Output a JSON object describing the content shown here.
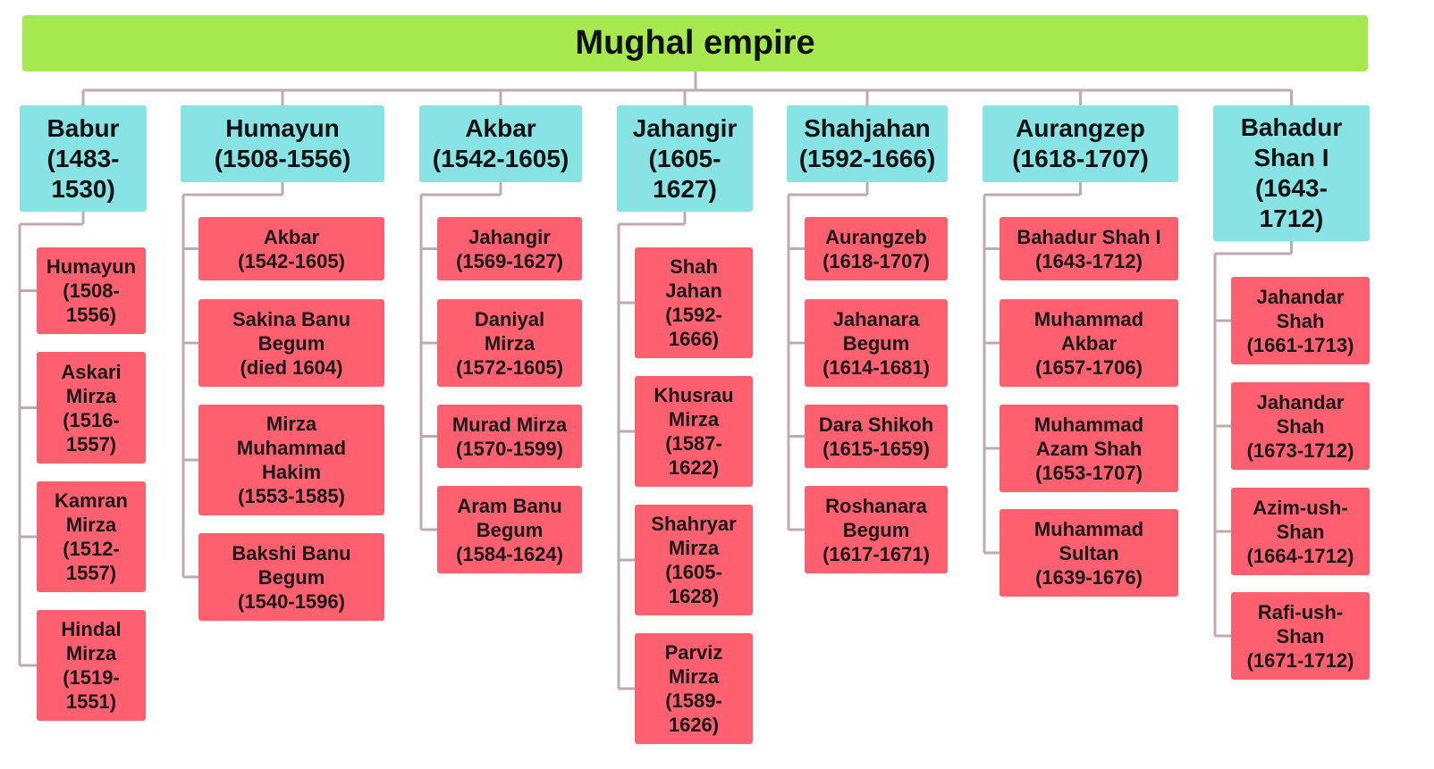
{
  "title": "Mughal empire",
  "rulers": [
    {
      "name": "Babur\n(1483-\n1530)",
      "children": [
        "Humayun\n(1508-\n1556)",
        "Askari\nMirza\n(1516-\n1557)",
        "Kamran\nMirza\n(1512-\n1557)",
        "Hindal\nMirza\n(1519-\n1551)"
      ]
    },
    {
      "name": "Humayun\n(1508-1556)",
      "children": [
        "Akbar\n(1542-1605)",
        "Sakina Banu\nBegum\n(died 1604)",
        "Mirza\nMuhammad\nHakim\n(1553-1585)",
        "Bakshi Banu\nBegum\n(1540-1596)"
      ]
    },
    {
      "name": "Akbar\n(1542-1605)",
      "children": [
        "Jahangir\n(1569-1627)",
        "Daniyal\nMirza\n(1572-1605)",
        "Murad Mirza\n(1570-1599)",
        "Aram Banu\nBegum\n(1584-1624)"
      ]
    },
    {
      "name": "Jahangir\n(1605-\n1627)",
      "children": [
        "Shah\nJahan\n(1592-\n1666)",
        "Khusrau\nMirza\n(1587-\n1622)",
        "Shahryar\nMirza\n(1605-\n1628)",
        "Parviz\nMirza\n(1589-\n1626)"
      ]
    },
    {
      "name": "Shahjahan\n(1592-1666)",
      "children": [
        "Aurangzeb\n(1618-1707)",
        "Jahanara\nBegum\n(1614-1681)",
        "Dara Shikoh\n(1615-1659)",
        "Roshanara\nBegum\n(1617-1671)"
      ]
    },
    {
      "name": "Aurangzep\n(1618-1707)",
      "children": [
        "Bahadur Shah I\n(1643-1712)",
        "Muhammad\nAkbar\n(1657-1706)",
        "Muhammad\nAzam Shah\n(1653-1707)",
        "Muhammad\nSultan\n(1639-1676)"
      ]
    },
    {
      "name": "Bahadur\nShan I\n(1643-\n1712)",
      "children": [
        "Jahandar\nShah\n(1661-1713)",
        "Jahandar\nShah\n(1673-1712)",
        "Azim-ush-\nShan\n(1664-1712)",
        "Rafi-ush-\nShan\n(1671-1712)"
      ]
    }
  ],
  "colors": {
    "root": "#a6e94e",
    "ruler": "#88e4e4",
    "child": "#ff6070",
    "connector": "#c0aab0"
  }
}
